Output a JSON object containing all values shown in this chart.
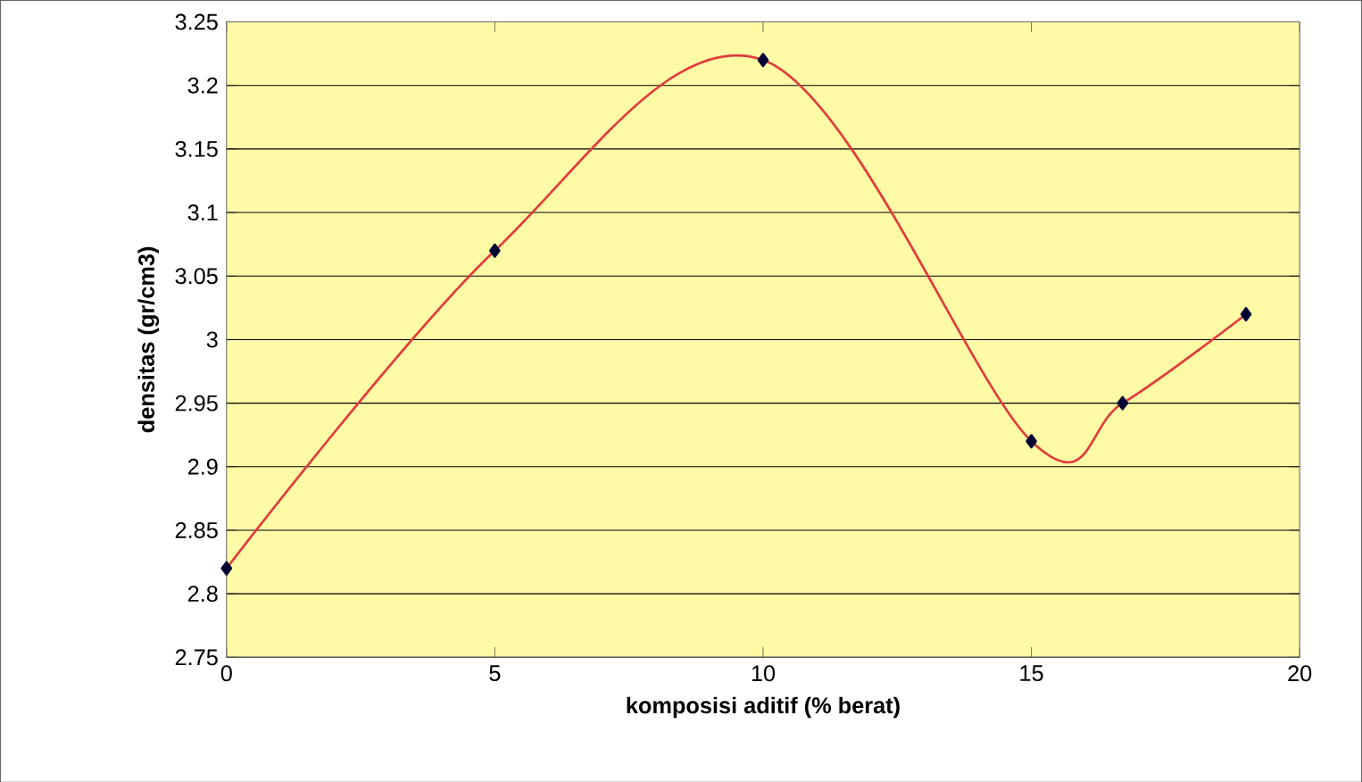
{
  "chart_data": {
    "type": "line",
    "xlabel": "komposisi aditif (% berat)",
    "ylabel": "densitas (gr/cm3)",
    "x": [
      0,
      5,
      10,
      15,
      16.7,
      19
    ],
    "series": [
      {
        "color": "#e03c3c",
        "values": [
          2.82,
          3.07,
          3.22,
          2.92,
          2.95,
          3.02
        ]
      }
    ],
    "xlim": [
      0,
      20
    ],
    "xticks": [
      0,
      5,
      10,
      15,
      20
    ],
    "ylim": [
      2.75,
      3.25
    ],
    "yticks": [
      2.75,
      2.8,
      2.85,
      2.9,
      2.95,
      3,
      3.05,
      3.1,
      3.15,
      3.2,
      3.25
    ],
    "grid": "y",
    "marker": "diamond",
    "line_style": "solid"
  }
}
